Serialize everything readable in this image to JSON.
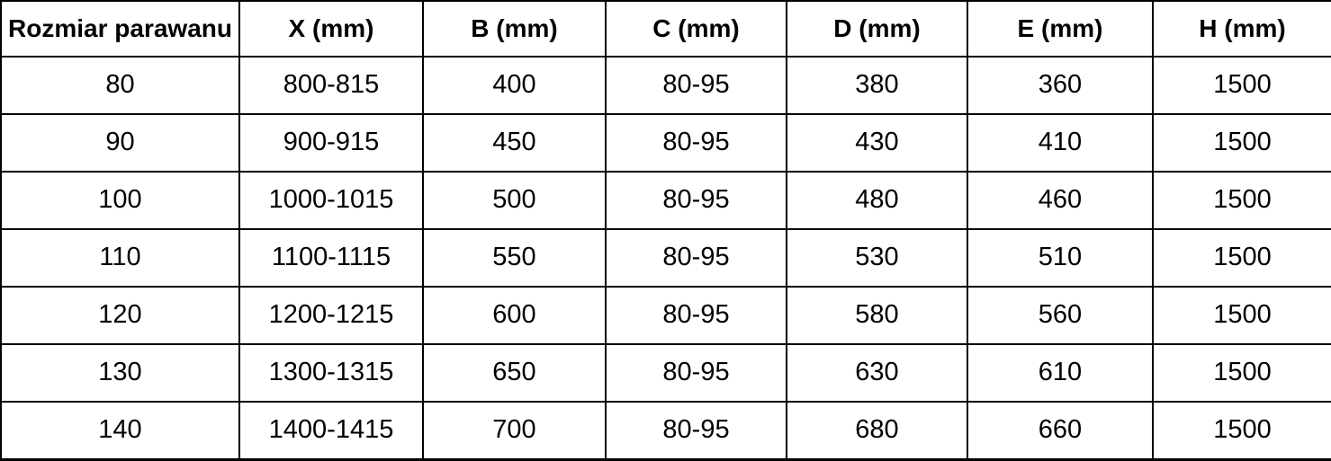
{
  "chart_data": {
    "type": "table",
    "title": "",
    "columns": [
      "Rozmiar parawanu",
      "X (mm)",
      "B (mm)",
      "C (mm)",
      "D (mm)",
      "E (mm)",
      "H (mm)"
    ],
    "rows": [
      [
        "80",
        "800-815",
        "400",
        "80-95",
        "380",
        "360",
        "1500"
      ],
      [
        "90",
        "900-915",
        "450",
        "80-95",
        "430",
        "410",
        "1500"
      ],
      [
        "100",
        "1000-1015",
        "500",
        "80-95",
        "480",
        "460",
        "1500"
      ],
      [
        "110",
        "1100-1115",
        "550",
        "80-95",
        "530",
        "510",
        "1500"
      ],
      [
        "120",
        "1200-1215",
        "600",
        "80-95",
        "580",
        "560",
        "1500"
      ],
      [
        "130",
        "1300-1315",
        "650",
        "80-95",
        "630",
        "610",
        "1500"
      ],
      [
        "140",
        "1400-1415",
        "700",
        "80-95",
        "680",
        "660",
        "1500"
      ]
    ],
    "grid": true,
    "border_color": "#000000",
    "background_color": "#ffffff",
    "text_color": "#000000"
  }
}
